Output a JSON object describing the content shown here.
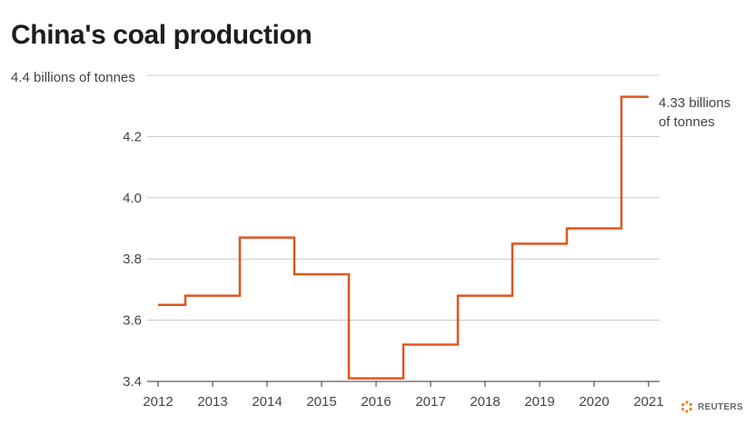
{
  "chart_data": {
    "type": "line",
    "step": true,
    "title": "China's coal production",
    "unit_label": "4.4 billions of tonnes",
    "x": [
      "2012",
      "2013",
      "2014",
      "2015",
      "2016",
      "2017",
      "2018",
      "2019",
      "2020",
      "2021"
    ],
    "series": [
      {
        "values": [
          3.65,
          3.68,
          3.87,
          3.75,
          3.41,
          3.52,
          3.68,
          3.85,
          3.9,
          4.33
        ],
        "color": "#e0551f"
      }
    ],
    "ylim": [
      3.4,
      4.4
    ],
    "y_ticks": [
      "3.4",
      "3.6",
      "3.8",
      "4.0",
      "4.2"
    ],
    "grid": true,
    "annotation": {
      "line1": "4.33 billions",
      "line2": "of tonnes"
    }
  },
  "source": {
    "label": "REUTERS",
    "icon": "reuters-logo-icon"
  }
}
